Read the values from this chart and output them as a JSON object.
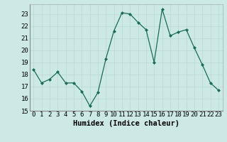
{
  "x": [
    0,
    1,
    2,
    3,
    4,
    5,
    6,
    7,
    8,
    9,
    10,
    11,
    12,
    13,
    14,
    15,
    16,
    17,
    18,
    19,
    20,
    21,
    22,
    23
  ],
  "y": [
    18.4,
    17.3,
    17.6,
    18.2,
    17.3,
    17.3,
    16.6,
    15.4,
    16.5,
    19.3,
    21.6,
    23.1,
    23.0,
    22.3,
    21.7,
    19.0,
    23.4,
    21.2,
    21.5,
    21.7,
    20.2,
    18.8,
    17.3,
    16.7
  ],
  "line_color": "#1a6b5a",
  "marker_color": "#1a6b5a",
  "bg_color": "#cce9e5",
  "grid_color": "#b8d8d4",
  "xlabel": "Humidex (Indice chaleur)",
  "ylim": [
    15,
    23.8
  ],
  "yticks": [
    15,
    16,
    17,
    18,
    19,
    20,
    21,
    22,
    23
  ],
  "xticks": [
    0,
    1,
    2,
    3,
    4,
    5,
    6,
    7,
    8,
    9,
    10,
    11,
    12,
    13,
    14,
    15,
    16,
    17,
    18,
    19,
    20,
    21,
    22,
    23
  ],
  "tick_fontsize": 6.5,
  "xlabel_fontsize": 7.5
}
